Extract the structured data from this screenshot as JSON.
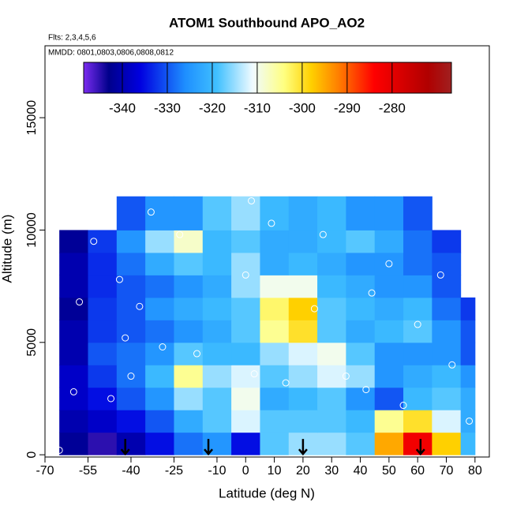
{
  "chart_data": {
    "type": "heatmap",
    "title": "ATOM1 Southbound APO_AO2",
    "flights_label": "Flts: 2,3,4,5,6",
    "dates_label": "MMDD: 0801,0803,0806,0808,0812",
    "xlabel": "Latitude (deg N)",
    "ylabel": "Altitude (m)",
    "xlim": [
      -70,
      85
    ],
    "ylim": [
      -100,
      18200
    ],
    "xticks": [
      -70,
      -55,
      -40,
      -25,
      -10,
      0,
      10,
      20,
      30,
      40,
      50,
      60,
      70,
      80
    ],
    "yticks": [
      0,
      5000,
      10000,
      15000
    ],
    "x_edges": [
      -65,
      -55,
      -45,
      -35,
      -25,
      -15,
      -5,
      5,
      15,
      25,
      35,
      45,
      55,
      65,
      75,
      80
    ],
    "y_edges": [
      0,
      1000,
      2000,
      3000,
      4000,
      5000,
      6000,
      7000,
      8000,
      9000,
      10000,
      11500
    ],
    "z": [
      [
        -342,
        -345,
        -340,
        -335,
        -328,
        -325,
        -335,
        -318,
        -315,
        -315,
        -318,
        -295,
        -282,
        -298,
        -320
      ],
      [
        -340,
        -338,
        -335,
        -330,
        -322,
        -318,
        -312,
        -318,
        -318,
        -318,
        -320,
        -305,
        -300,
        -312,
        -322
      ],
      [
        -338,
        -335,
        -330,
        -325,
        -315,
        -318,
        -310,
        -322,
        -320,
        -318,
        -325,
        -330,
        -320,
        -318,
        -322
      ],
      [
        -338,
        -332,
        -328,
        -320,
        -305,
        -315,
        -312,
        -318,
        -315,
        -312,
        -315,
        -325,
        -322,
        -320,
        -325
      ],
      [
        -340,
        -330,
        -328,
        -325,
        -318,
        -320,
        -320,
        -315,
        -312,
        -310,
        -318,
        -325,
        -325,
        -325,
        -330
      ],
      [
        -340,
        -332,
        -330,
        -328,
        -325,
        -322,
        -318,
        -305,
        -300,
        -318,
        -322,
        -320,
        -318,
        -325,
        -330
      ],
      [
        -342,
        -332,
        -330,
        -325,
        -322,
        -320,
        -318,
        -303,
        -298,
        -318,
        -320,
        -322,
        -320,
        -328,
        -332
      ],
      [
        -340,
        -333,
        -330,
        -328,
        -325,
        -322,
        -315,
        -310,
        -310,
        -320,
        -322,
        -325,
        -325,
        -330,
        null
      ],
      [
        -340,
        -333,
        -328,
        -322,
        -318,
        -320,
        -315,
        -322,
        -320,
        -322,
        -325,
        -325,
        -328,
        -330,
        null
      ],
      [
        -342,
        -332,
        -325,
        -315,
        -308,
        -320,
        -318,
        -322,
        -322,
        -320,
        -318,
        -322,
        -328,
        -332,
        null
      ],
      [
        null,
        null,
        -330,
        -325,
        -325,
        -318,
        -315,
        -320,
        -322,
        -320,
        -325,
        -325,
        -330,
        null,
        null
      ]
    ],
    "clim": [
      -348.6,
      -266.8
    ],
    "cticks": [
      -340,
      -330,
      -320,
      -310,
      -300,
      -290,
      -280
    ],
    "colorscale": [
      [
        -348.6,
        "#7b2cf0"
      ],
      [
        -343,
        "#00008b"
      ],
      [
        -336,
        "#0000e0"
      ],
      [
        -326,
        "#1e8fff"
      ],
      [
        -319,
        "#40c0ff"
      ],
      [
        -311,
        "#f0fbff"
      ],
      [
        -304,
        "#ffff80"
      ],
      [
        -298,
        "#ffd000"
      ],
      [
        -292,
        "#ff8000"
      ],
      [
        -284,
        "#ff0000"
      ],
      [
        -272,
        "#b00000"
      ],
      [
        -266.8,
        "#a02020"
      ]
    ],
    "samples": {
      "lat": [
        -65,
        -53,
        -47,
        -44,
        -40,
        -33,
        -58,
        -37,
        -29,
        -23,
        -17,
        0,
        3,
        9,
        24,
        35,
        44,
        55,
        68,
        78,
        -42,
        14,
        60,
        72,
        -60,
        2,
        27,
        42,
        50
      ],
      "alt": [
        200,
        9500,
        2500,
        7800,
        3500,
        10800,
        6800,
        6600,
        4800,
        9800,
        4500,
        8000,
        3600,
        10300,
        6500,
        3500,
        7200,
        2200,
        8000,
        1500,
        5200,
        3200,
        5800,
        4000,
        2800,
        11300,
        9800,
        2900,
        8500
      ]
    },
    "arrows": [
      -42,
      -13,
      20,
      61
    ],
    "grid": false
  }
}
